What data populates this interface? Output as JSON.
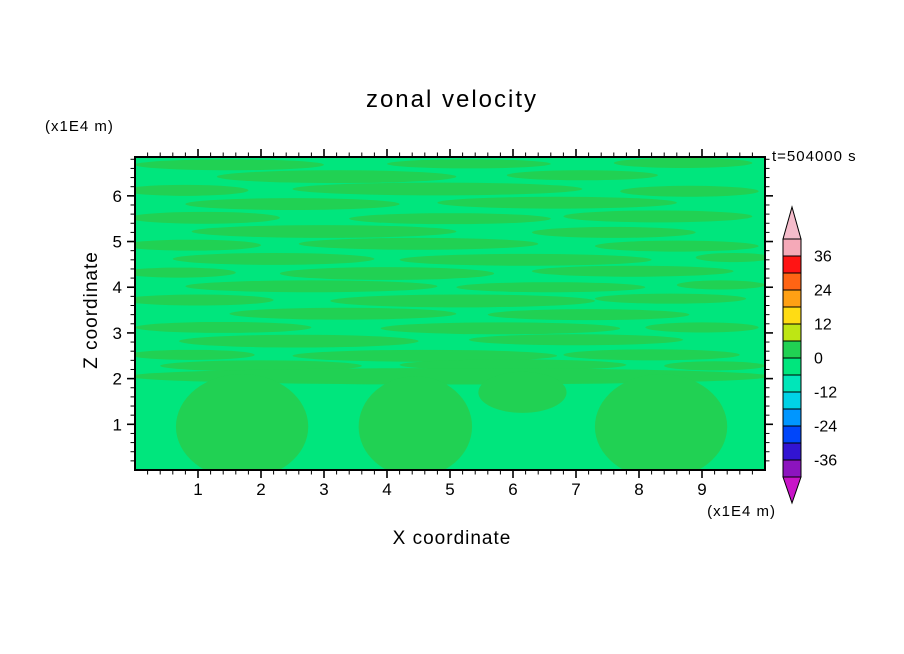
{
  "chart_data": {
    "type": "contour",
    "title": "zonal velocity",
    "time_label": "t=504000 s",
    "xlabel": "X coordinate",
    "ylabel": "Z coordinate",
    "x_unit_label": "(x1E4 m)",
    "y_unit_label": "(x1E4 m)",
    "xlim": [
      0,
      10
    ],
    "zlim": [
      0,
      6.85
    ],
    "x_ticks": [
      1,
      2,
      3,
      4,
      5,
      6,
      7,
      8,
      9
    ],
    "z_ticks": [
      1,
      2,
      3,
      4,
      5,
      6
    ],
    "minor_tick_step": 0.2,
    "grid": false,
    "field": {
      "base_color": "#00E67D",
      "band_color": "#21D153",
      "note": "velocity values lie mostly between -6 and +6; darker green bands are the 0..+6 contour region over the -6..0 background, with broad blobs below z=2",
      "streaks": [
        [
          1.5,
          6.68,
          1.5,
          0.12
        ],
        [
          5.3,
          6.7,
          1.3,
          0.1
        ],
        [
          8.7,
          6.72,
          1.1,
          0.11
        ],
        [
          3.2,
          6.42,
          1.9,
          0.14
        ],
        [
          7.1,
          6.45,
          1.2,
          0.11
        ],
        [
          0.8,
          6.12,
          1.0,
          0.12
        ],
        [
          4.8,
          6.15,
          2.3,
          0.14
        ],
        [
          8.8,
          6.1,
          1.1,
          0.12
        ],
        [
          2.5,
          5.82,
          1.7,
          0.13
        ],
        [
          6.7,
          5.85,
          1.9,
          0.13
        ],
        [
          1.1,
          5.52,
          1.2,
          0.13
        ],
        [
          5.0,
          5.5,
          1.6,
          0.12
        ],
        [
          8.3,
          5.55,
          1.5,
          0.13
        ],
        [
          3.0,
          5.22,
          2.1,
          0.14
        ],
        [
          7.6,
          5.2,
          1.3,
          0.12
        ],
        [
          0.9,
          4.92,
          1.1,
          0.12
        ],
        [
          4.5,
          4.95,
          1.9,
          0.13
        ],
        [
          8.6,
          4.9,
          1.3,
          0.12
        ],
        [
          2.2,
          4.62,
          1.6,
          0.13
        ],
        [
          6.2,
          4.6,
          2.0,
          0.13
        ],
        [
          9.5,
          4.65,
          0.6,
          0.1
        ],
        [
          0.7,
          4.32,
          0.9,
          0.11
        ],
        [
          4.0,
          4.3,
          1.7,
          0.14
        ],
        [
          7.9,
          4.35,
          1.6,
          0.12
        ],
        [
          2.8,
          4.02,
          2.0,
          0.13
        ],
        [
          6.6,
          4.0,
          1.5,
          0.11
        ],
        [
          9.3,
          4.05,
          0.7,
          0.1
        ],
        [
          1.0,
          3.72,
          1.2,
          0.12
        ],
        [
          5.2,
          3.7,
          2.1,
          0.14
        ],
        [
          8.5,
          3.75,
          1.2,
          0.11
        ],
        [
          3.3,
          3.42,
          1.8,
          0.13
        ],
        [
          7.2,
          3.4,
          1.6,
          0.12
        ],
        [
          1.4,
          3.12,
          1.4,
          0.12
        ],
        [
          5.8,
          3.1,
          1.9,
          0.13
        ],
        [
          9.0,
          3.12,
          0.9,
          0.11
        ],
        [
          2.6,
          2.82,
          1.9,
          0.14
        ],
        [
          7.0,
          2.85,
          1.7,
          0.12
        ],
        [
          0.9,
          2.52,
          1.0,
          0.11
        ],
        [
          4.6,
          2.5,
          2.1,
          0.13
        ],
        [
          8.2,
          2.52,
          1.4,
          0.12
        ],
        [
          2.0,
          2.28,
          1.6,
          0.12
        ],
        [
          6.0,
          2.3,
          1.8,
          0.12
        ],
        [
          9.2,
          2.28,
          0.8,
          0.1
        ],
        [
          5.0,
          2.05,
          5.1,
          0.18
        ]
      ],
      "bottom_blobs": [
        [
          1.7,
          0.95,
          1.05,
          1.15
        ],
        [
          4.45,
          0.95,
          0.9,
          1.1
        ],
        [
          8.35,
          0.95,
          1.05,
          1.15
        ],
        [
          6.15,
          1.7,
          0.7,
          0.45
        ]
      ]
    },
    "colorbar": {
      "value_range": [
        -42,
        42
      ],
      "level_step": 6,
      "segments_top_to_bottom": [
        "#F5A9B8",
        "#FF1414",
        "#FF6414",
        "#FFA014",
        "#FFDC14",
        "#BEE614",
        "#21D153",
        "#00E67D",
        "#00E6B9",
        "#00D2E6",
        "#0096FF",
        "#0046FA",
        "#3214D2",
        "#8C14BE"
      ],
      "arrow_top_color": "#F5BCCB",
      "arrow_bottom_color": "#C814C8",
      "tick_labels": [
        {
          "value": 36,
          "label": "36"
        },
        {
          "value": 24,
          "label": "24"
        },
        {
          "value": 12,
          "label": "12"
        },
        {
          "value": 0,
          "label": "0"
        },
        {
          "value": -12,
          "label": "-12"
        },
        {
          "value": -24,
          "label": "-24"
        },
        {
          "value": -36,
          "label": "-36"
        }
      ]
    }
  }
}
